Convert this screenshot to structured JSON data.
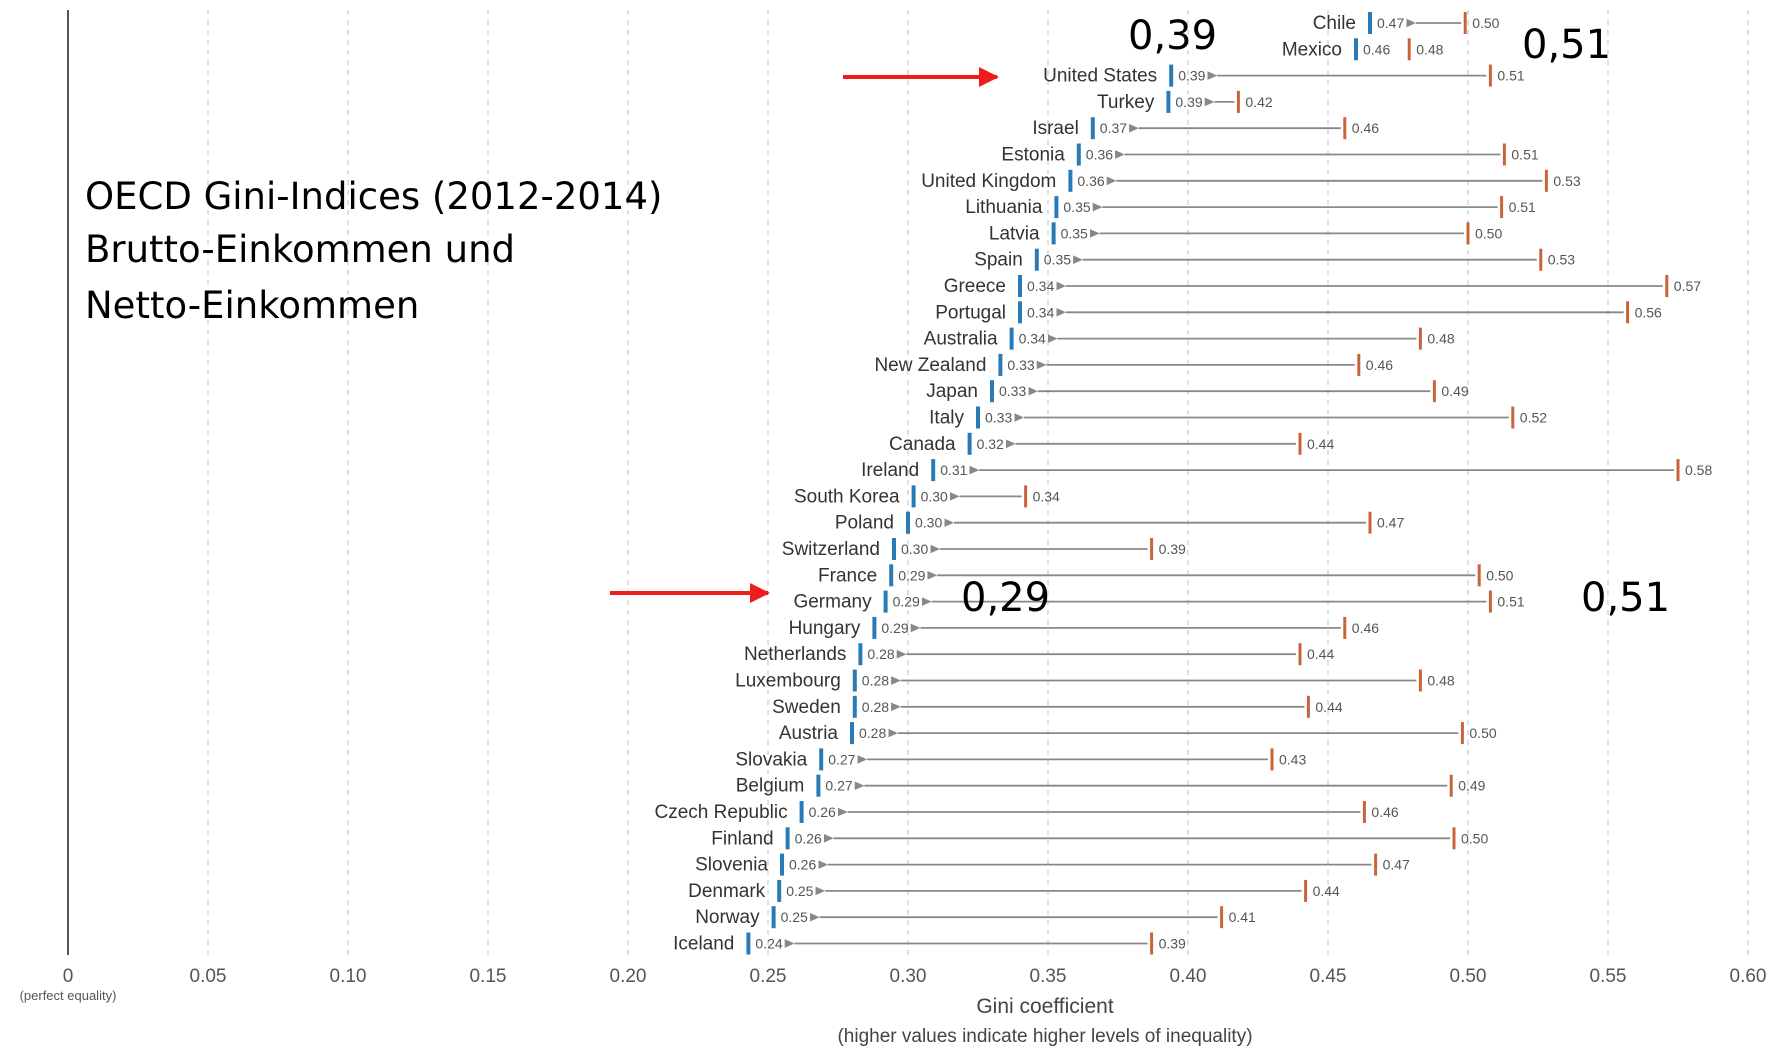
{
  "title_lines": [
    "OECD Gini-Indices (2012-2014)",
    "Brutto-Einkommen und",
    "Netto-Einkommen"
  ],
  "annotations": {
    "us_net": "0,39",
    "us_gross": "0,51",
    "de_net": "0,29",
    "de_gross": "0,51",
    "arrow_color": "#ee1c1c",
    "arrow_targets": [
      "United States",
      "Germany"
    ]
  },
  "colors": {
    "net": "#2b7ab8",
    "gross": "#c8643a",
    "arrow": "#888888",
    "grid": "#cccccc",
    "axis": "#555555"
  },
  "chart_data": {
    "type": "dumbbell",
    "xlabel": "Gini coefficient",
    "xlabel_sub": "(higher values indicate higher levels of inequality)",
    "xlim": [
      0,
      0.6
    ],
    "x_ticks": [
      "0",
      "0.05",
      "0.10",
      "0.15",
      "0.20",
      "0.25",
      "0.30",
      "0.35",
      "0.40",
      "0.45",
      "0.50",
      "0.55",
      "0.60"
    ],
    "x_zero_sublabel": "(perfect equality)",
    "grid": true,
    "countries": [
      "Chile",
      "Mexico",
      "United States",
      "Turkey",
      "Israel",
      "Estonia",
      "United Kingdom",
      "Lithuania",
      "Latvia",
      "Spain",
      "Greece",
      "Portugal",
      "Australia",
      "New Zealand",
      "Japan",
      "Italy",
      "Canada",
      "Ireland",
      "South Korea",
      "Poland",
      "Switzerland",
      "France",
      "Germany",
      "Hungary",
      "Netherlands",
      "Luxembourg",
      "Sweden",
      "Austria",
      "Slovakia",
      "Belgium",
      "Czech Republic",
      "Finland",
      "Slovenia",
      "Denmark",
      "Norway",
      "Iceland"
    ],
    "series": [
      {
        "name": "net",
        "values": [
          0.465,
          0.46,
          0.394,
          0.393,
          0.366,
          0.361,
          0.358,
          0.353,
          0.352,
          0.346,
          0.34,
          0.34,
          0.337,
          0.333,
          0.33,
          0.325,
          0.322,
          0.309,
          0.302,
          0.3,
          0.295,
          0.294,
          0.292,
          0.288,
          0.283,
          0.281,
          0.281,
          0.28,
          0.269,
          0.268,
          0.262,
          0.257,
          0.255,
          0.254,
          0.252,
          0.243
        ],
        "labels": [
          "0.47",
          "0.46",
          "0.39",
          "0.39",
          "0.37",
          "0.36",
          "0.36",
          "0.35",
          "0.35",
          "0.35",
          "0.34",
          "0.34",
          "0.34",
          "0.33",
          "0.33",
          "0.33",
          "0.32",
          "0.31",
          "0.30",
          "0.30",
          "0.30",
          "0.29",
          "0.29",
          "0.29",
          "0.28",
          "0.28",
          "0.28",
          "0.28",
          "0.27",
          "0.27",
          "0.26",
          "0.26",
          "0.26",
          "0.25",
          "0.25",
          "0.24"
        ]
      },
      {
        "name": "gross",
        "values": [
          0.499,
          0.479,
          0.508,
          0.418,
          0.456,
          0.513,
          0.528,
          0.512,
          0.5,
          0.526,
          0.571,
          0.557,
          0.483,
          0.461,
          0.488,
          0.516,
          0.44,
          0.575,
          0.342,
          0.465,
          0.387,
          0.504,
          0.508,
          0.456,
          0.44,
          0.483,
          0.443,
          0.498,
          0.43,
          0.494,
          0.463,
          0.495,
          0.467,
          0.442,
          0.412,
          0.387
        ],
        "labels": [
          "0.50",
          "0.48",
          "0.51",
          "0.42",
          "0.46",
          "0.51",
          "0.53",
          "0.51",
          "0.50",
          "0.53",
          "0.57",
          "0.56",
          "0.48",
          "0.46",
          "0.49",
          "0.52",
          "0.44",
          "0.58",
          "0.34",
          "0.47",
          "0.39",
          "0.50",
          "0.51",
          "0.46",
          "0.44",
          "0.48",
          "0.44",
          "0.50",
          "0.43",
          "0.49",
          "0.46",
          "0.50",
          "0.47",
          "0.44",
          "0.41",
          "0.39"
        ]
      }
    ]
  }
}
